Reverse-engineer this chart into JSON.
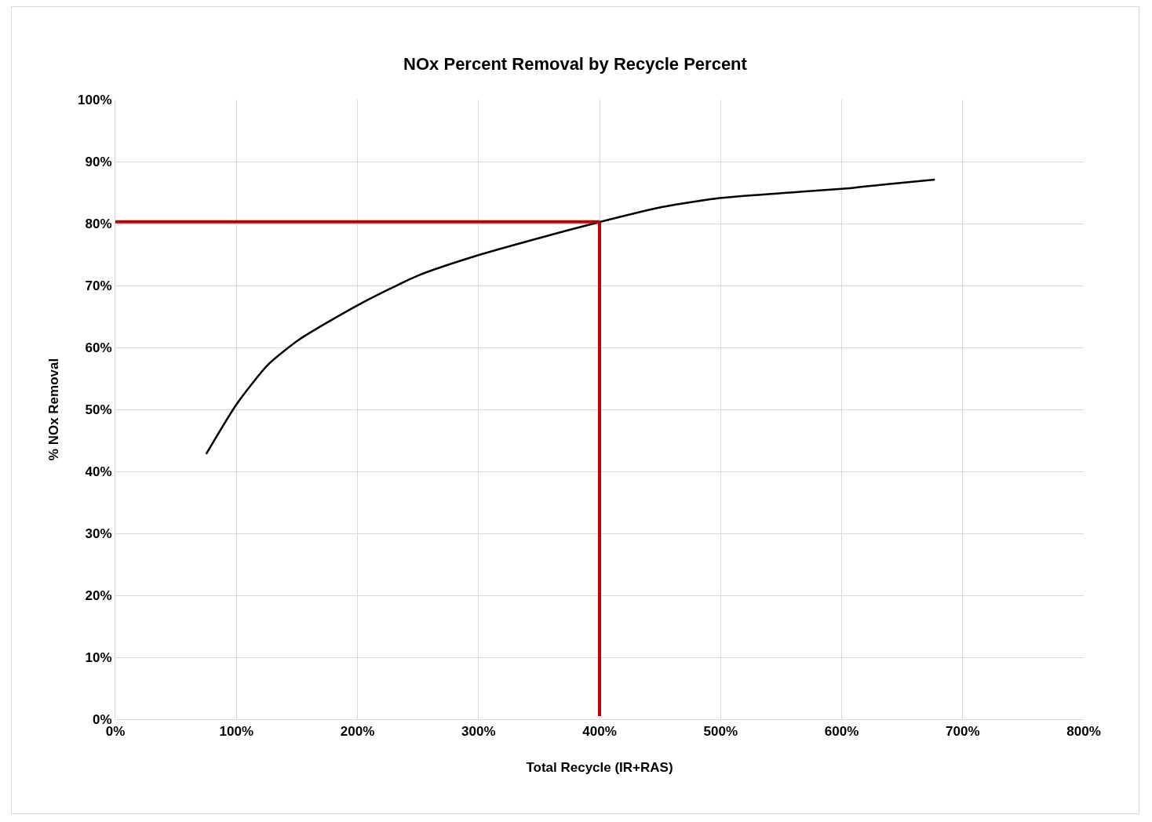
{
  "chart_data": {
    "type": "line",
    "title": "NOx Percent Removal by Recycle Percent",
    "xlabel": "Total Recycle (IR+RAS)",
    "ylabel": "% NOx Removal",
    "series": [
      {
        "color": "#000000",
        "x": [
          75,
          100,
          126,
          152,
          200,
          250,
          300,
          349,
          399,
          450,
          499,
          550,
          600,
          640,
          677
        ],
        "values": [
          42.8,
          50.8,
          57.2,
          61.3,
          66.8,
          71.6,
          74.9,
          77.6,
          80.2,
          82.6,
          84.1,
          84.9,
          85.6,
          86.4,
          87.1
        ]
      },
      {
        "color": "#c00000",
        "x": [
          0,
          400
        ],
        "values": [
          80.3,
          80.3
        ]
      },
      {
        "color": "#c00000",
        "x": [
          400,
          400
        ],
        "values": [
          80.3,
          0.5
        ]
      }
    ],
    "xlim": [
      0,
      800
    ],
    "xticks": [
      {
        "value": 0,
        "label": "0%"
      },
      {
        "value": 100,
        "label": "100%"
      },
      {
        "value": 200,
        "label": "200%"
      },
      {
        "value": 300,
        "label": "300%"
      },
      {
        "value": 400,
        "label": "400%"
      },
      {
        "value": 500,
        "label": "500%"
      },
      {
        "value": 600,
        "label": "600%"
      },
      {
        "value": 700,
        "label": "700%"
      },
      {
        "value": 800,
        "label": "800%"
      }
    ],
    "ylim": [
      0,
      100
    ],
    "yticks": [
      {
        "value": 0,
        "label": "0%"
      },
      {
        "value": 10,
        "label": "10%"
      },
      {
        "value": 20,
        "label": "20%"
      },
      {
        "value": 30,
        "label": "30%"
      },
      {
        "value": 40,
        "label": "40%"
      },
      {
        "value": 50,
        "label": "50%"
      },
      {
        "value": 60,
        "label": "60%"
      },
      {
        "value": 70,
        "label": "70%"
      },
      {
        "value": 80,
        "label": "80%"
      },
      {
        "value": 90,
        "label": "90%"
      },
      {
        "value": 100,
        "label": "100%"
      }
    ],
    "grid": true,
    "marker": "none",
    "line_style": "solid"
  }
}
